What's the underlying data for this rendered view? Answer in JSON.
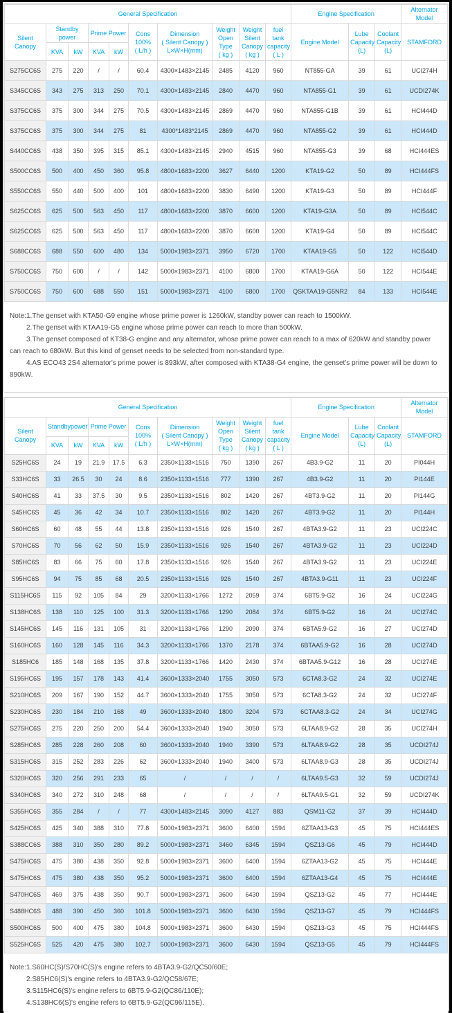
{
  "colors": {
    "header_text": "#00a2e4",
    "model_link_text": "#2eb6f0",
    "alt_row_bg": "#cbe7f9",
    "model_col_bg": "#f0f0f0",
    "border": "#d9d9d9",
    "frame": "#000000"
  },
  "tables": [
    {
      "series": "CC6S",
      "header": {
        "general": "General Specification",
        "engine": "Engine Specification",
        "alternator": "Alternator\nModel",
        "silent_canopy": "Silent Canopy",
        "standby": "Standby\npower",
        "prime": "Prime Power",
        "kva1": "KVA",
        "kw1": "kW",
        "kva2": "KVA",
        "kw2": "kW",
        "cons": "Cons\n100%\n( L/h )",
        "dimension": "Dimension\n( Silent Canopy )\nL×W×H(mm)",
        "weight_open": "Weight\nOpen Type\n( kg )",
        "weight_silent": "Weight\nSilent\nCanopy\n( kg )",
        "fuel": "fuel tank\ncapacity\n( L )",
        "engine_model": "Engine Model",
        "lube": "Lube\nCapacity\n(L)",
        "coolant": "Coolant\nCapacity\n(L)",
        "stamford": "STAMFORD"
      },
      "rows": [
        [
          "S275CC6S",
          "275",
          "220",
          "/",
          "/",
          "60.4",
          "4300×1483×2145",
          "2485",
          "4120",
          "960",
          "NT855-GA",
          "39",
          "61",
          "UCI274H"
        ],
        [
          "S345CC6S",
          "343",
          "275",
          "313",
          "250",
          "70.1",
          "4300×1483×2145",
          "2840",
          "4470",
          "960",
          "NTA855-G1",
          "39",
          "61",
          "UCDI274K"
        ],
        [
          "S375CC6S",
          "375",
          "300",
          "344",
          "275",
          "70.5",
          "4300×1483×2145",
          "2869",
          "4470",
          "960",
          "NTA855-G1B",
          "39",
          "61",
          "HCI444D"
        ],
        [
          "S375CC6S",
          "375",
          "300",
          "344",
          "275",
          "81",
          "4300*1483*2145",
          "2869",
          "4470",
          "960",
          "NTA855-G2",
          "39",
          "61",
          "HCI444D"
        ],
        [
          "S440CC6S",
          "438",
          "350",
          "395",
          "315",
          "85.1",
          "4300×1483×2145",
          "2940",
          "4515",
          "960",
          "NTA855-G3",
          "39",
          "68",
          "HCI444ES"
        ],
        [
          "S500CC6S",
          "500",
          "400",
          "450",
          "360",
          "95.8",
          "4800×1683×2200",
          "3627",
          "6440",
          "1200",
          "KTA19-G2",
          "50",
          "89",
          "HCI444FS"
        ],
        [
          "S550CC6S",
          "550",
          "440",
          "500",
          "400",
          "101",
          "4800×1683×2200",
          "3830",
          "6490",
          "1200",
          "KTA19-G3",
          "50",
          "89",
          "HCI444F"
        ],
        [
          "S625CC6S",
          "625",
          "500",
          "563",
          "450",
          "117",
          "4800×1683×2200",
          "3870",
          "6600",
          "1200",
          "KTA19-G3A",
          "50",
          "89",
          "HCI544C"
        ],
        [
          "S625CC6S",
          "625",
          "500",
          "563",
          "450",
          "117",
          "4800×1683×2200",
          "3870",
          "6600",
          "1200",
          "KTA19-G4",
          "50",
          "89",
          "HCI544C"
        ],
        [
          "S688CC6S",
          "688",
          "550",
          "600",
          "480",
          "134",
          "5000×1983×2371",
          "3950",
          "6720",
          "1700",
          "KTAA19-G5",
          "50",
          "122",
          "HCI544D"
        ],
        [
          "S750CC6S",
          "750",
          "600",
          "/",
          "/",
          "142",
          "5000×1983×2371",
          "4100",
          "6800",
          "1700",
          "KTAA19-G6A",
          "50",
          "122",
          "HCI544E"
        ],
        [
          "S750CC6S",
          "750",
          "600",
          "688",
          "550",
          "151",
          "5000×1983×2371",
          "4100",
          "6800",
          "1700",
          "QSKTAA19-G5NR2",
          "84",
          "133",
          "HCI544E"
        ]
      ],
      "notes": [
        "Note:1.The genset with KTA50-G9 engine whose prime power is 1260kW, standby power can reach to 1500kW.",
        "2.The genset with KTAA19-G5 engine whose prime power can reach to more than 500kW.",
        "3.The genset composed of KT38-G engine and any alternator, whose prime power can reach to a max of 620kW and standby power can reach to 680kW. But this kind of genset needs to be selected from non-standard type.",
        "4.AS ECO43 2S4 alternator's prime power is 893kW, after composed with KTA38-G4 engine, the genset's prime power will be down to 890kW."
      ]
    },
    {
      "series": "HC6S",
      "header": {
        "general": "General Specification",
        "engine": "Engine Specification",
        "alternator": "Alternator\nModel",
        "silent_canopy": "Silent Canopy",
        "standby": "Standbypower",
        "prime": "Prime Power",
        "kva1": "KVA",
        "kw1": "kW",
        "kva2": "KVA",
        "kw2": "kW",
        "cons": "Cons\n100%\n( L/h )",
        "dimension": "Dimension\n( Silent Canopy )\nL×W×H(mm)",
        "weight_open": "Weight\nOpen Type\n( kg )",
        "weight_silent": "Weight\nSilent\nCanopy\n( kg )",
        "fuel": "fuel tank\ncapacity\n( L )",
        "engine_model": "Engine Model",
        "lube": "Lube\nCapacity\n(L)",
        "coolant": "Coolant\nCapacity\n(L)",
        "stamford": "STAMFORD"
      },
      "rows": [
        [
          "S25HC6S",
          "24",
          "19",
          "21.9",
          "17.5",
          "6.3",
          "2350×1133×1516",
          "750",
          "1390",
          "267",
          "4B3.9-G2",
          "11",
          "20",
          "PI044H"
        ],
        [
          "S33HC6S",
          "33",
          "26.5",
          "30",
          "24",
          "8.6",
          "2350×1133×1516",
          "777",
          "1390",
          "267",
          "4B3.9-G2",
          "11",
          "20",
          "PI144E"
        ],
        [
          "S40HC6S",
          "41",
          "33",
          "37.5",
          "30",
          "9.5",
          "2350×1133×1516",
          "802",
          "1420",
          "267",
          "4BT3.9-G2",
          "11",
          "20",
          "PI144G"
        ],
        [
          "S45HC6S",
          "45",
          "36",
          "42",
          "34",
          "10.7",
          "2350×1133×1516",
          "802",
          "1420",
          "267",
          "4BT3.9-G2",
          "11",
          "20",
          "PI144H"
        ],
        [
          "S60HC6S",
          "60",
          "48",
          "55",
          "44",
          "13.8",
          "2350×1133×1516",
          "926",
          "1540",
          "267",
          "4BTA3.9-G2",
          "11",
          "23",
          "UCI224C"
        ],
        [
          "S70HC6S",
          "70",
          "56",
          "62",
          "50",
          "15.9",
          "2350×1133×1516",
          "926",
          "1540",
          "267",
          "4BTA3.9-G2",
          "11",
          "23",
          "UCI224D"
        ],
        [
          "S85HC6S",
          "83",
          "66",
          "75",
          "60",
          "17.8",
          "2350×1133×1516",
          "926",
          "1540",
          "267",
          "4BTA3.9-G2",
          "11",
          "23",
          "UCI224E"
        ],
        [
          "S95HC6S",
          "94",
          "75",
          "85",
          "68",
          "20.5",
          "2350×1133×1516",
          "926",
          "1540",
          "267",
          "4BTA3.9-G11",
          "11",
          "23",
          "UCI224F"
        ],
        [
          "S115HC6S",
          "115",
          "92",
          "105",
          "84",
          "29",
          "3200×1133×1766",
          "1272",
          "2059",
          "374",
          "6BT5.9-G2",
          "16",
          "24",
          "UCI224G"
        ],
        [
          "S138HC6S",
          "138",
          "110",
          "125",
          "100",
          "31.3",
          "3200×1133×1766",
          "1290",
          "2084",
          "374",
          "6BT5.9-G2",
          "16",
          "24",
          "UCI274C"
        ],
        [
          "S145HC6S",
          "145",
          "116",
          "131",
          "105",
          "31",
          "3200×1133×1766",
          "1290",
          "2090",
          "374",
          "6BTA5.9-G2",
          "16",
          "27",
          "UCI274D"
        ],
        [
          "S160HC6S",
          "160",
          "128",
          "145",
          "116",
          "34.3",
          "3200×1133×1766",
          "1370",
          "2178",
          "374",
          "6BTAA5.9-G2",
          "16",
          "28",
          "UCI274D"
        ],
        [
          "S185HC6",
          "185",
          "148",
          "168",
          "135",
          "37.8",
          "3200×1133×1766",
          "1420",
          "2430",
          "374",
          "6BTAA5.9-G12",
          "16",
          "28",
          "UCI274E"
        ],
        [
          "S195HC6S",
          "195",
          "157",
          "178",
          "143",
          "41.4",
          "3600×1333×2040",
          "1755",
          "3050",
          "573",
          "6CTA8.3-G2",
          "24",
          "32",
          "UCI274E"
        ],
        [
          "S210HC6S",
          "209",
          "167",
          "190",
          "152",
          "44.7",
          "3600×1333×2040",
          "1755",
          "3050",
          "573",
          "6CTA8.3-G2",
          "24",
          "32",
          "UCI274F"
        ],
        [
          "S230HC6S",
          "230",
          "184",
          "210",
          "168",
          "49",
          "3600×1333×2040",
          "1800",
          "3204",
          "573",
          "6CTAA8.3-G2",
          "24",
          "34",
          "UCI274G"
        ],
        [
          "S275HC6S",
          "275",
          "220",
          "250",
          "200",
          "54.4",
          "3600×1333×2040",
          "1940",
          "3050",
          "573",
          "6LTAA8.9-G2",
          "28",
          "35",
          "UCI274H"
        ],
        [
          "S285HC6S",
          "285",
          "228",
          "260",
          "208",
          "60",
          "3600×1333×2040",
          "1940",
          "3390",
          "573",
          "6LTAA8.9-G2",
          "28",
          "35",
          "UCDI274J"
        ],
        [
          "S315HC6S",
          "315",
          "252",
          "283",
          "226",
          "62",
          "3600×1333×2040",
          "1940",
          "3400",
          "573",
          "6LTAA8.9-G3",
          "28",
          "35",
          "UCDI274J"
        ],
        [
          "S320HC6S",
          "320",
          "256",
          "291",
          "233",
          "65",
          "/",
          "/",
          "/",
          "/",
          "6LTAA9.5-G3",
          "32",
          "59",
          "UCDI274J"
        ],
        [
          "S340HC6S",
          "340",
          "272",
          "310",
          "248",
          "68",
          "/",
          "/",
          "/",
          "/",
          "6LTAA9.5-G1",
          "32",
          "59",
          "UCDI274K"
        ],
        [
          "S355HC6S",
          "355",
          "284",
          "/",
          "/",
          "77",
          "4300×1483×2145",
          "3090",
          "4127",
          "883",
          "QSM11-G2",
          "37",
          "39",
          "HCI444D"
        ],
        [
          "S425HC6S",
          "425",
          "340",
          "388",
          "310",
          "77.8",
          "5000×1983×2371",
          "3600",
          "6400",
          "1594",
          "6ZTAA13-G3",
          "45",
          "75",
          "HCI444ES"
        ],
        [
          "S388CC6S",
          "388",
          "310",
          "350",
          "280",
          "89.2",
          "5000×1983×2371",
          "3460",
          "6345",
          "1594",
          "QSZ13-G6",
          "45",
          "79",
          "HCI444D"
        ],
        [
          "S475HC6S",
          "475",
          "380",
          "438",
          "350",
          "92.8",
          "5000×1983×2371",
          "3600",
          "6400",
          "1594",
          "6ZTAA13-G2",
          "45",
          "75",
          "HCI444E"
        ],
        [
          "S475HC6S",
          "475",
          "380",
          "438",
          "350",
          "95.2",
          "5000×1983×2371",
          "3600",
          "6400",
          "1594",
          "6ZTAA13-G4",
          "45",
          "75",
          "HCI444E"
        ],
        [
          "S470HC6S",
          "469",
          "375",
          "438",
          "350",
          "90.7",
          "5000×1983×2371",
          "3600",
          "6430",
          "1594",
          "QSZ13-G2",
          "45",
          "77",
          "HCI444E"
        ],
        [
          "S488HC6S",
          "488",
          "390",
          "450",
          "360",
          "101.8",
          "5000×1983×2371",
          "3600",
          "6430",
          "1594",
          "QSZ13-G7",
          "45",
          "79",
          "HCI444FS"
        ],
        [
          "S500HC6S",
          "500",
          "400",
          "475",
          "380",
          "104.8",
          "5000×1983×2371",
          "3600",
          "6430",
          "1594",
          "QSZ13-G3",
          "45",
          "75",
          "HCI444FS"
        ],
        [
          "S525HC6S",
          "525",
          "420",
          "475",
          "380",
          "102.7",
          "5000×1983×2371",
          "3600",
          "6430",
          "1594",
          "QSZ13-G5",
          "45",
          "79",
          "HCI444FS"
        ]
      ],
      "notes": [
        "Note:1.S60HC(S)/S70HC(S)'s engine refers to 4BTA3.9-G2/QC50/60E;",
        "2.S85HC6(S)'s engine refers to 4BTA3.9-G2/QC58/67E;",
        "3.S115HC6(S)'s engine refers to 6BT5.9-G2(QC86/110E);",
        "4.S138HC6(S)'s engine refers to 6BT5.9-G2(QC96/115E)."
      ]
    }
  ]
}
